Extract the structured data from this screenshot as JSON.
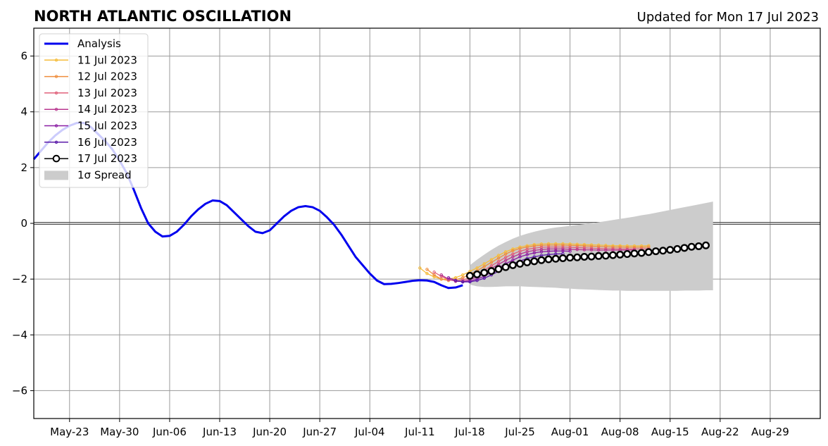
{
  "chart_data": {
    "type": "line",
    "title": "NORTH ATLANTIC OSCILLATION",
    "subtitle": "Updated for Mon 17 Jul 2023",
    "xlabel": "",
    "ylabel": "",
    "xlim": [
      "2023-05-18",
      "2023-09-05"
    ],
    "ylim": [
      -7,
      7
    ],
    "yticks": [
      -6,
      -4,
      -2,
      0,
      2,
      4,
      6
    ],
    "xticks": [
      "2023-05-23",
      "2023-05-30",
      "2023-06-06",
      "2023-06-13",
      "2023-06-20",
      "2023-06-27",
      "2023-07-04",
      "2023-07-11",
      "2023-07-18",
      "2023-07-25",
      "2023-08-01",
      "2023-08-08",
      "2023-08-15",
      "2023-08-22",
      "2023-08-29"
    ],
    "xtick_labels": [
      "May-23",
      "May-30",
      "Jun-06",
      "Jun-13",
      "Jun-20",
      "Jun-27",
      "Jul-04",
      "Jul-11",
      "Jul-18",
      "Jul-25",
      "Aug-01",
      "Aug-08",
      "Aug-15",
      "Aug-22",
      "Aug-29"
    ],
    "grid": true,
    "legend_position": "top-left",
    "zero_line": 0,
    "analysis": {
      "name": "Analysis",
      "color": "#0000ee",
      "start": "2023-05-18",
      "values": [
        2.3,
        2.6,
        2.9,
        3.15,
        3.35,
        3.5,
        3.6,
        3.6,
        3.45,
        3.2,
        2.95,
        2.65,
        2.25,
        1.8,
        1.2,
        0.55,
        0.0,
        -0.3,
        -0.47,
        -0.45,
        -0.3,
        -0.05,
        0.25,
        0.5,
        0.7,
        0.82,
        0.8,
        0.65,
        0.4,
        0.15,
        -0.1,
        -0.3,
        -0.35,
        -0.25,
        0.0,
        0.25,
        0.45,
        0.58,
        0.62,
        0.58,
        0.45,
        0.22,
        -0.05,
        -0.4,
        -0.8,
        -1.2,
        -1.5,
        -1.8,
        -2.05,
        -2.18,
        -2.17,
        -2.14,
        -2.1,
        -2.06,
        -2.04,
        -2.05,
        -2.1,
        -2.22,
        -2.32,
        -2.3,
        -2.22
      ]
    },
    "forecasts": [
      {
        "name": "11 Jul 2023",
        "color": "#f5bd3b",
        "start": "2023-07-11",
        "values": [
          -1.6,
          -1.8,
          -1.92,
          -2.0,
          -2.0,
          -1.95,
          -1.85,
          -1.72,
          -1.6,
          -1.45,
          -1.3,
          -1.15,
          -1.02,
          -0.92,
          -0.85,
          -0.8,
          -0.76,
          -0.74,
          -0.73,
          -0.73,
          -0.73,
          -0.74,
          -0.75,
          -0.76,
          -0.77,
          -0.78,
          -0.79,
          -0.8,
          -0.8,
          -0.81,
          -0.81,
          -0.81,
          -0.8
        ]
      },
      {
        "name": "12 Jul 2023",
        "color": "#ef8e3d",
        "start": "2023-07-12",
        "values": [
          -1.65,
          -1.85,
          -2.0,
          -2.05,
          -2.02,
          -1.95,
          -1.83,
          -1.7,
          -1.55,
          -1.4,
          -1.25,
          -1.1,
          -0.98,
          -0.9,
          -0.85,
          -0.81,
          -0.79,
          -0.78,
          -0.78,
          -0.78,
          -0.79,
          -0.8,
          -0.81,
          -0.82,
          -0.83,
          -0.84,
          -0.85,
          -0.85,
          -0.86,
          -0.86,
          -0.86,
          -0.85
        ]
      },
      {
        "name": "13 Jul 2023",
        "color": "#e0607a",
        "start": "2023-07-13",
        "values": [
          -1.75,
          -1.9,
          -2.02,
          -2.06,
          -2.03,
          -1.95,
          -1.83,
          -1.68,
          -1.52,
          -1.37,
          -1.22,
          -1.1,
          -1.0,
          -0.93,
          -0.89,
          -0.86,
          -0.85,
          -0.85,
          -0.85,
          -0.86,
          -0.87,
          -0.88,
          -0.89,
          -0.9,
          -0.91,
          -0.91,
          -0.92,
          -0.92,
          -0.92,
          -0.92,
          -0.91
        ]
      },
      {
        "name": "14 Jul 2023",
        "color": "#b8378f",
        "start": "2023-07-14",
        "values": [
          -1.85,
          -2.0,
          -2.08,
          -2.08,
          -2.02,
          -1.92,
          -1.78,
          -1.62,
          -1.47,
          -1.33,
          -1.2,
          -1.1,
          -1.02,
          -0.97,
          -0.94,
          -0.92,
          -0.92,
          -0.92,
          -0.93,
          -0.94,
          -0.95,
          -0.95,
          -0.96,
          -0.96,
          -0.96,
          -0.96,
          -0.96,
          -0.95
        ]
      },
      {
        "name": "15 Jul 2023",
        "color": "#8a1ea3",
        "start": "2023-07-15",
        "values": [
          -1.95,
          -2.05,
          -2.1,
          -2.07,
          -2.0,
          -1.9,
          -1.75,
          -1.6,
          -1.45,
          -1.32,
          -1.2,
          -1.12,
          -1.06,
          -1.02,
          -1.0,
          -0.99,
          -0.99,
          -1.0
        ]
      },
      {
        "name": "16 Jul 2023",
        "color": "#5a1aa8",
        "start": "2023-07-16",
        "values": [
          -2.05,
          -2.1,
          -2.1,
          -2.05,
          -1.97,
          -1.85,
          -1.72,
          -1.58,
          -1.45,
          -1.35,
          -1.26,
          -1.2,
          -1.15,
          -1.12,
          -1.1,
          -1.09
        ]
      },
      {
        "name": "17 Jul 2023",
        "color": "#000000",
        "start": "2023-07-18",
        "markers": "open-circle",
        "values": [
          -1.88,
          -1.83,
          -1.77,
          -1.71,
          -1.64,
          -1.57,
          -1.5,
          -1.45,
          -1.4,
          -1.36,
          -1.32,
          -1.29,
          -1.27,
          -1.25,
          -1.23,
          -1.22,
          -1.2,
          -1.19,
          -1.17,
          -1.16,
          -1.14,
          -1.12,
          -1.1,
          -1.08,
          -1.06,
          -1.03,
          -1.0,
          -0.98,
          -0.95,
          -0.92,
          -0.88,
          -0.84,
          -0.82,
          -0.79
        ]
      }
    ],
    "spread": {
      "name": "1σ Spread",
      "color": "#cccccc",
      "start": "2023-07-18",
      "upper": [
        -1.5,
        -1.3,
        -1.12,
        -0.95,
        -0.8,
        -0.67,
        -0.55,
        -0.45,
        -0.37,
        -0.3,
        -0.24,
        -0.19,
        -0.15,
        -0.12,
        -0.09,
        -0.06,
        -0.03,
        0.0,
        0.04,
        0.08,
        0.12,
        0.16,
        0.2,
        0.24,
        0.29,
        0.33,
        0.38,
        0.43,
        0.48,
        0.53,
        0.58,
        0.63,
        0.68,
        0.73,
        0.78
      ],
      "lower": [
        -2.2,
        -2.26,
        -2.28,
        -2.28,
        -2.27,
        -2.26,
        -2.26,
        -2.26,
        -2.27,
        -2.28,
        -2.29,
        -2.3,
        -2.31,
        -2.33,
        -2.34,
        -2.36,
        -2.37,
        -2.38,
        -2.39,
        -2.4,
        -2.41,
        -2.41,
        -2.42,
        -2.42,
        -2.42,
        -2.42,
        -2.42,
        -2.42,
        -2.42,
        -2.42,
        -2.41,
        -2.41,
        -2.41,
        -2.4,
        -2.4
      ]
    }
  }
}
